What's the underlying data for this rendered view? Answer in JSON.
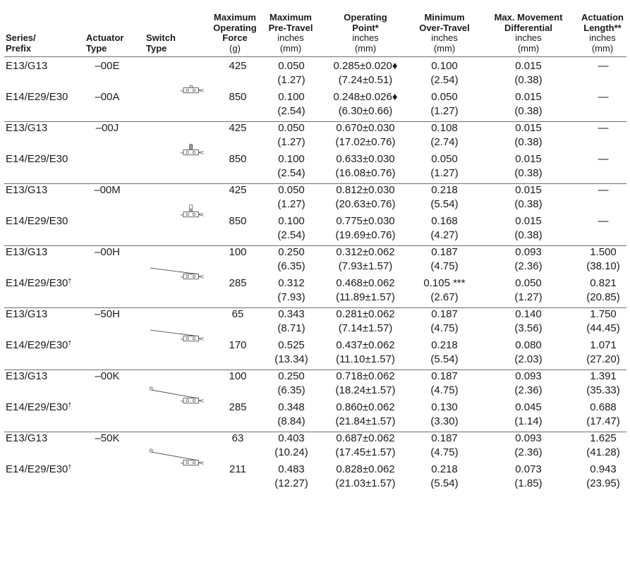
{
  "headers": [
    {
      "key": "series",
      "lines_bold": [
        "Series/",
        "Prefix"
      ],
      "lines_norm": []
    },
    {
      "key": "actuator",
      "lines_bold": [
        "Actuator",
        "Type"
      ],
      "lines_norm": []
    },
    {
      "key": "switch",
      "lines_bold": [
        "Switch",
        "Type"
      ],
      "lines_norm": []
    },
    {
      "key": "force",
      "lines_bold": [
        "Maximum",
        "Operating",
        "Force"
      ],
      "lines_norm": [
        "(g)"
      ]
    },
    {
      "key": "pretravel",
      "lines_bold": [
        "Maximum",
        "Pre-Travel"
      ],
      "lines_norm": [
        "inches",
        "(mm)"
      ]
    },
    {
      "key": "oppoint",
      "lines_bold": [
        "Operating",
        "Point*"
      ],
      "lines_norm": [
        "inches",
        "(mm)"
      ]
    },
    {
      "key": "overtravel",
      "lines_bold": [
        "Minimum",
        "Over-Travel"
      ],
      "lines_norm": [
        "inches",
        "(mm)"
      ]
    },
    {
      "key": "differential",
      "lines_bold": [
        "Max. Movement",
        "Differential"
      ],
      "lines_norm": [
        "inches",
        "(mm)"
      ]
    },
    {
      "key": "actlen",
      "lines_bold": [
        "Actuation",
        "Length**"
      ],
      "lines_norm": [
        "inches",
        "(mm)"
      ]
    }
  ],
  "groups": [
    {
      "actuator": "–00E",
      "switch_icon": "pin-plunger-switch-icon",
      "rows": [
        {
          "series": "E13/G13",
          "dagger": "",
          "force": "425",
          "pretravel": [
            "0.050",
            "(1.27)"
          ],
          "oppoint": [
            "0.285±0.020♦",
            "(7.24±0.51)"
          ],
          "overtravel": [
            "0.100",
            "(2.54)"
          ],
          "differential": [
            "0.015",
            "(0.38)"
          ],
          "actlen": [
            "—",
            ""
          ]
        },
        {
          "series": "E14/E29/E30",
          "dagger": "",
          "actuator": "–00A",
          "force": "850",
          "pretravel": [
            "0.100",
            "(2.54)"
          ],
          "oppoint": [
            "0.248±0.026♦",
            "(6.30±0.66)"
          ],
          "overtravel": [
            "0.050",
            "(1.27)"
          ],
          "differential": [
            "0.015",
            "(0.38)"
          ],
          "actlen": [
            "—",
            ""
          ]
        }
      ]
    },
    {
      "actuator": "–00J",
      "switch_icon": "short-plunger-switch-icon",
      "rows": [
        {
          "series": "E13/G13",
          "dagger": "",
          "force": "425",
          "pretravel": [
            "0.050",
            "(1.27)"
          ],
          "oppoint": [
            "0.670±0.030",
            "(17.02±0.76)"
          ],
          "overtravel": [
            "0.108",
            "(2.74)"
          ],
          "differential": [
            "0.015",
            "(0.38)"
          ],
          "actlen": [
            "—",
            ""
          ]
        },
        {
          "series": "E14/E29/E30",
          "dagger": "",
          "force": "850",
          "pretravel": [
            "0.100",
            "(2.54)"
          ],
          "oppoint": [
            "0.633±0.030",
            "(16.08±0.76)"
          ],
          "overtravel": [
            "0.050",
            "(1.27)"
          ],
          "differential": [
            "0.015",
            "(0.38)"
          ],
          "actlen": [
            "—",
            ""
          ]
        }
      ]
    },
    {
      "actuator": "–00M",
      "switch_icon": "tall-plunger-switch-icon",
      "rows": [
        {
          "series": "E13/G13",
          "dagger": "",
          "force": "425",
          "pretravel": [
            "0.050",
            "(1.27)"
          ],
          "oppoint": [
            "0.812±0.030",
            "(20.63±0.76)"
          ],
          "overtravel": [
            "0.218",
            "(5.54)"
          ],
          "differential": [
            "0.015",
            "(0.38)"
          ],
          "actlen": [
            "—",
            ""
          ]
        },
        {
          "series": "E14/E29/E30",
          "dagger": "",
          "force": "850",
          "pretravel": [
            "0.100",
            "(2.54)"
          ],
          "oppoint": [
            "0.775±0.030",
            "(19.69±0.76)"
          ],
          "overtravel": [
            "0.168",
            "(4.27)"
          ],
          "differential": [
            "0.015",
            "(0.38)"
          ],
          "actlen": [
            "—",
            ""
          ]
        }
      ]
    },
    {
      "actuator": "–00H",
      "switch_icon": "lever-switch-icon",
      "rows": [
        {
          "series": "E13/G13",
          "dagger": "",
          "force": "100",
          "pretravel": [
            "0.250",
            "(6.35)"
          ],
          "oppoint": [
            "0.312±0.062",
            "(7.93±1.57)"
          ],
          "overtravel": [
            "0.187",
            "(4.75)"
          ],
          "differential": [
            "0.093",
            "(2.36)"
          ],
          "actlen": [
            "1.500",
            "(38.10)"
          ]
        },
        {
          "series": "E14/E29/E30",
          "dagger": "†",
          "force": "285",
          "pretravel": [
            "0.312",
            "(7.93)"
          ],
          "oppoint": [
            "0.468±0.062",
            "(11.89±1.57)"
          ],
          "overtravel": [
            "0.105 ***",
            "(2.67)"
          ],
          "differential": [
            "0.050",
            "(1.27)"
          ],
          "actlen": [
            "0.821",
            "(20.85)"
          ]
        }
      ]
    },
    {
      "actuator": "–50H",
      "switch_icon": "lever-switch-icon",
      "rows": [
        {
          "series": "E13/G13",
          "dagger": "",
          "force": "65",
          "pretravel": [
            "0.343",
            "(8.71)"
          ],
          "oppoint": [
            "0.281±0.062",
            "(7.14±1.57)"
          ],
          "overtravel": [
            "0.187",
            "(4.75)"
          ],
          "differential": [
            "0.140",
            "(3.56)"
          ],
          "actlen": [
            "1.750",
            "(44.45)"
          ]
        },
        {
          "series": "E14/E29/E30",
          "dagger": "†",
          "force": "170",
          "pretravel": [
            "0.525",
            "(13.34)"
          ],
          "oppoint": [
            "0.437±0.062",
            "(11.10±1.57)"
          ],
          "overtravel": [
            "0.218",
            "(5.54)"
          ],
          "differential": [
            "0.080",
            "(2.03)"
          ],
          "actlen": [
            "1.071",
            "(27.20)"
          ]
        }
      ]
    },
    {
      "actuator": "–00K",
      "switch_icon": "roller-lever-switch-icon",
      "rows": [
        {
          "series": "E13/G13",
          "dagger": "",
          "force": "100",
          "pretravel": [
            "0.250",
            "(6.35)"
          ],
          "oppoint": [
            "0.718±0.062",
            "(18.24±1.57)"
          ],
          "overtravel": [
            "0.187",
            "(4.75)"
          ],
          "differential": [
            "0.093",
            "(2.36)"
          ],
          "actlen": [
            "1.391",
            "(35.33)"
          ]
        },
        {
          "series": "E14/E29/E30",
          "dagger": "†",
          "force": "285",
          "pretravel": [
            "0.348",
            "(8.84)"
          ],
          "oppoint": [
            "0.860±0.062",
            "(21.84±1.57)"
          ],
          "overtravel": [
            "0.130",
            "(3.30)"
          ],
          "differential": [
            "0.045",
            "(1.14)"
          ],
          "actlen": [
            "0.688",
            "(17.47)"
          ]
        }
      ]
    },
    {
      "actuator": "–50K",
      "switch_icon": "roller-lever-switch-icon",
      "rows": [
        {
          "series": "E13/G13",
          "dagger": "",
          "force": "63",
          "pretravel": [
            "0.403",
            "(10.24)"
          ],
          "oppoint": [
            "0.687±0.062",
            "(17.45±1.57)"
          ],
          "overtravel": [
            "0.187",
            "(4.75)"
          ],
          "differential": [
            "0.093",
            "(2.36)"
          ],
          "actlen": [
            "1.625",
            "(41.28)"
          ]
        },
        {
          "series": "E14/E29/E30",
          "dagger": "†",
          "force": "211",
          "pretravel": [
            "0.483",
            "(12.27)"
          ],
          "oppoint": [
            "0.828±0.062",
            "(21.03±1.57)"
          ],
          "overtravel": [
            "0.218",
            "(5.54)"
          ],
          "differential": [
            "0.073",
            "(1.85)"
          ],
          "actlen": [
            "0.943",
            "(23.95)"
          ]
        }
      ]
    }
  ],
  "colors": {
    "rule": "#6e6e6e",
    "text": "#1a1a1a",
    "icon": "#3a3a3a"
  }
}
